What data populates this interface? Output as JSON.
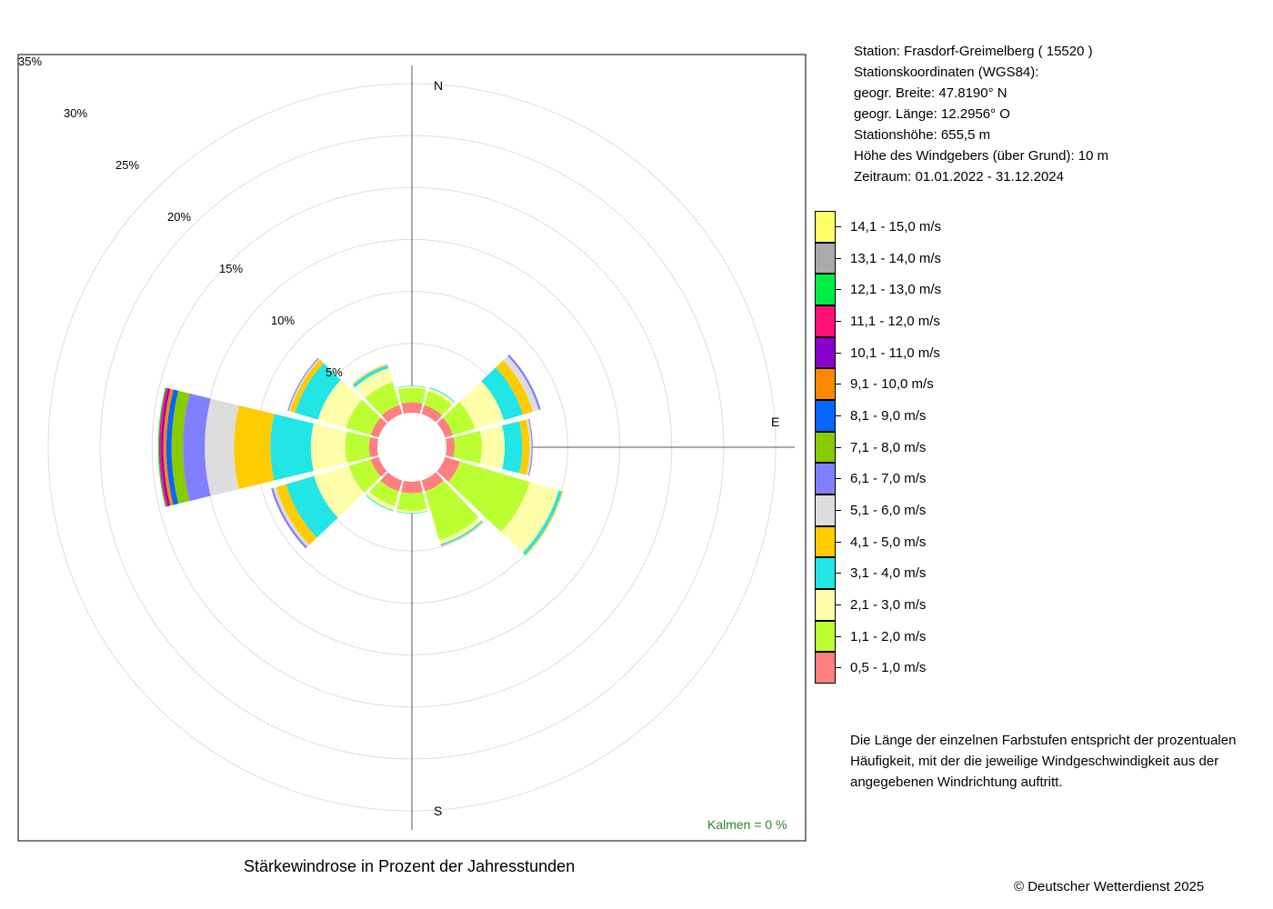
{
  "station": {
    "line1": "Station:  Frasdorf-Greimelberg  ( 15520 )",
    "line2": "Stationskoordinaten (WGS84):",
    "line3": "geogr. Breite: 47.8190° N",
    "line4": "geogr. Länge: 12.2956° O",
    "line5": "Stationshöhe: 655,5 m",
    "line6": "Höhe des Windgebers (über Grund): 10 m",
    "line7": "Zeitraum: 01.01.2022 - 31.12.2024"
  },
  "legend": [
    {
      "label": "14,1 - 15,0 m/s",
      "color": "#FFFF66"
    },
    {
      "label": "13,1 - 14,0 m/s",
      "color": "#AAAAAA"
    },
    {
      "label": "12,1 - 13,0 m/s",
      "color": "#00EE44"
    },
    {
      "label": "11,1 - 12,0 m/s",
      "color": "#FF1177"
    },
    {
      "label": "10,1 - 11,0 m/s",
      "color": "#8800CC"
    },
    {
      "label": "9,1 - 10,0 m/s",
      "color": "#FF8800"
    },
    {
      "label": "8,1 - 9,0 m/s",
      "color": "#0066FF"
    },
    {
      "label": "7,1 - 8,0 m/s",
      "color": "#88CC00"
    },
    {
      "label": "6,1 - 7,0 m/s",
      "color": "#8080FF"
    },
    {
      "label": "5,1 - 6,0 m/s",
      "color": "#DDDDDD"
    },
    {
      "label": "4,1 - 5,0 m/s",
      "color": "#FFCC00"
    },
    {
      "label": "3,1 - 4,0 m/s",
      "color": "#22E5E5"
    },
    {
      "label": "2,1 - 3,0 m/s",
      "color": "#FFFFAA"
    },
    {
      "label": "1,1 - 2,0 m/s",
      "color": "#BBFF33"
    },
    {
      "label": "0,5 - 1,0 m/s",
      "color": "#FF7F7F"
    }
  ],
  "note": {
    "line1": "Die Länge der einzelnen Farbstufen entspricht der prozentualen",
    "line2": "Häufigkeit, mit der die jeweilige Windgeschwindigkeit aus der",
    "line3": "angegebenen Windrichtung auftritt."
  },
  "caption": "Stärkewindrose in Prozent der Jahresstunden",
  "copyright": "© Deutscher Wetterdienst  2025",
  "kalmen": "Kalmen  =  0 %",
  "chart_data": {
    "type": "windrose",
    "title": "Stärkewindrose in Prozent der Jahresstunden",
    "directions_deg": [
      0,
      30,
      60,
      90,
      120,
      150,
      180,
      210,
      240,
      270,
      300,
      330
    ],
    "compass_labels": {
      "N": "N",
      "E": "E",
      "S": "S"
    },
    "ring_labels": [
      "5%",
      "10%",
      "15%",
      "20%",
      "25%",
      "30%",
      "35%"
    ],
    "rmax_percent": 35,
    "calms_percent": 0,
    "bins": [
      "0,5 - 1,0 m/s",
      "1,1 - 2,0 m/s",
      "2,1 - 3,0 m/s",
      "3,1 - 4,0 m/s",
      "4,1 - 5,0 m/s",
      "5,1 - 6,0 m/s",
      "6,1 - 7,0 m/s",
      "7,1 - 8,0 m/s",
      "8,1 - 9,0 m/s",
      "9,1 - 10,0 m/s",
      "10,1 - 11,0 m/s",
      "11,1 - 12,0 m/s",
      "12,1 - 13,0 m/s",
      "13,1 - 14,0 m/s",
      "14,1 - 15,0 m/s"
    ],
    "sectors": [
      {
        "dir": 0,
        "values": [
          1.0,
          1.4,
          0.15,
          0.05,
          0,
          0,
          0,
          0,
          0,
          0,
          0,
          0,
          0,
          0,
          0
        ]
      },
      {
        "dir": 30,
        "values": [
          0.9,
          1.4,
          0.3,
          0.1,
          0,
          0,
          0,
          0,
          0,
          0,
          0,
          0,
          0,
          0,
          0
        ]
      },
      {
        "dir": 60,
        "values": [
          0.8,
          2.2,
          2.9,
          1.9,
          1.0,
          0.6,
          0.2,
          0,
          0,
          0,
          0,
          0,
          0,
          0,
          0
        ]
      },
      {
        "dir": 90,
        "values": [
          0.8,
          2.6,
          2.2,
          1.7,
          0.7,
          0.2,
          0.1,
          0,
          0,
          0,
          0,
          0,
          0,
          0,
          0
        ]
      },
      {
        "dir": 120,
        "values": [
          1.5,
          7.0,
          2.9,
          0.3,
          0.1,
          0.05,
          0,
          0,
          0,
          0,
          0,
          0,
          0,
          0,
          0
        ]
      },
      {
        "dir": 150,
        "values": [
          1.1,
          4.9,
          0.4,
          0.15,
          0.05,
          0.05,
          0,
          0,
          0,
          0,
          0,
          0,
          0,
          0,
          0
        ]
      },
      {
        "dir": 180,
        "values": [
          1.1,
          1.7,
          0.2,
          0.05,
          0,
          0,
          0,
          0,
          0,
          0,
          0,
          0,
          0,
          0,
          0
        ]
      },
      {
        "dir": 210,
        "values": [
          1.1,
          1.5,
          0.4,
          0.1,
          0,
          0,
          0,
          0,
          0,
          0,
          0,
          0,
          0,
          0,
          0
        ]
      },
      {
        "dir": 240,
        "values": [
          0.8,
          2.2,
          3.5,
          2.8,
          1.0,
          0.3,
          0.2,
          0,
          0,
          0,
          0,
          0,
          0,
          0,
          0
        ]
      },
      {
        "dir": 270,
        "values": [
          0.8,
          2.3,
          3.3,
          3.9,
          3.5,
          2.8,
          2.1,
          1.1,
          0.5,
          0.3,
          0.2,
          0.2,
          0.1,
          0,
          0
        ]
      },
      {
        "dir": 300,
        "values": [
          0.8,
          2.5,
          2.8,
          2.3,
          0.5,
          0.15,
          0.1,
          0,
          0,
          0,
          0,
          0,
          0,
          0,
          0
        ]
      },
      {
        "dir": 330,
        "values": [
          0.9,
          2.3,
          1.4,
          0.3,
          0.1,
          0.05,
          0,
          0,
          0,
          0,
          0,
          0,
          0,
          0,
          0
        ]
      }
    ]
  }
}
